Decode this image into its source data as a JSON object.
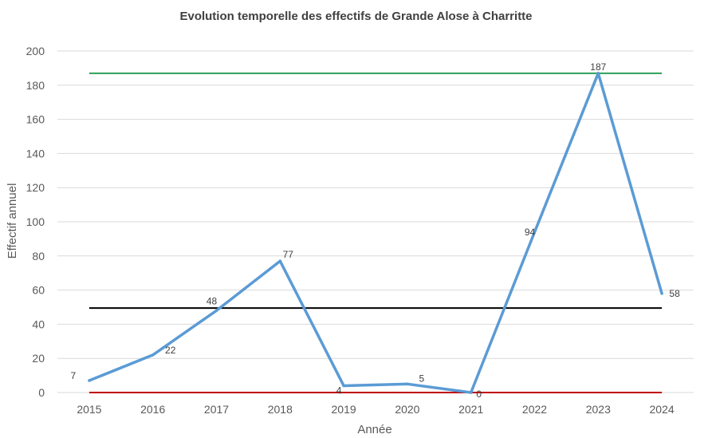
{
  "chart_data": {
    "type": "line",
    "title": "Evolution temporelle des effectifs de Grande Alose à Charritte",
    "xlabel": "Année",
    "ylabel": "Effectif annuel",
    "categories": [
      "2015",
      "2016",
      "2017",
      "2018",
      "2019",
      "2020",
      "2021",
      "2022",
      "2023",
      "2024"
    ],
    "series": [
      {
        "values": [
          7,
          22,
          48,
          77,
          4,
          5,
          0,
          94,
          187,
          58
        ],
        "color": "#5b9bd5",
        "data_labels": [
          "7",
          "22",
          "48",
          "77",
          "4",
          "5",
          "0",
          "94",
          "187",
          "58"
        ]
      }
    ],
    "reference_lines": [
      {
        "value": 187,
        "color": "#2ca05a"
      },
      {
        "value": 49.5,
        "color": "#000000"
      },
      {
        "value": 0,
        "color": "#c00000"
      }
    ],
    "ylim": [
      0,
      200
    ],
    "yticks": [
      0,
      20,
      40,
      60,
      80,
      100,
      120,
      140,
      160,
      180,
      200
    ],
    "grid": true,
    "legend": "none"
  }
}
